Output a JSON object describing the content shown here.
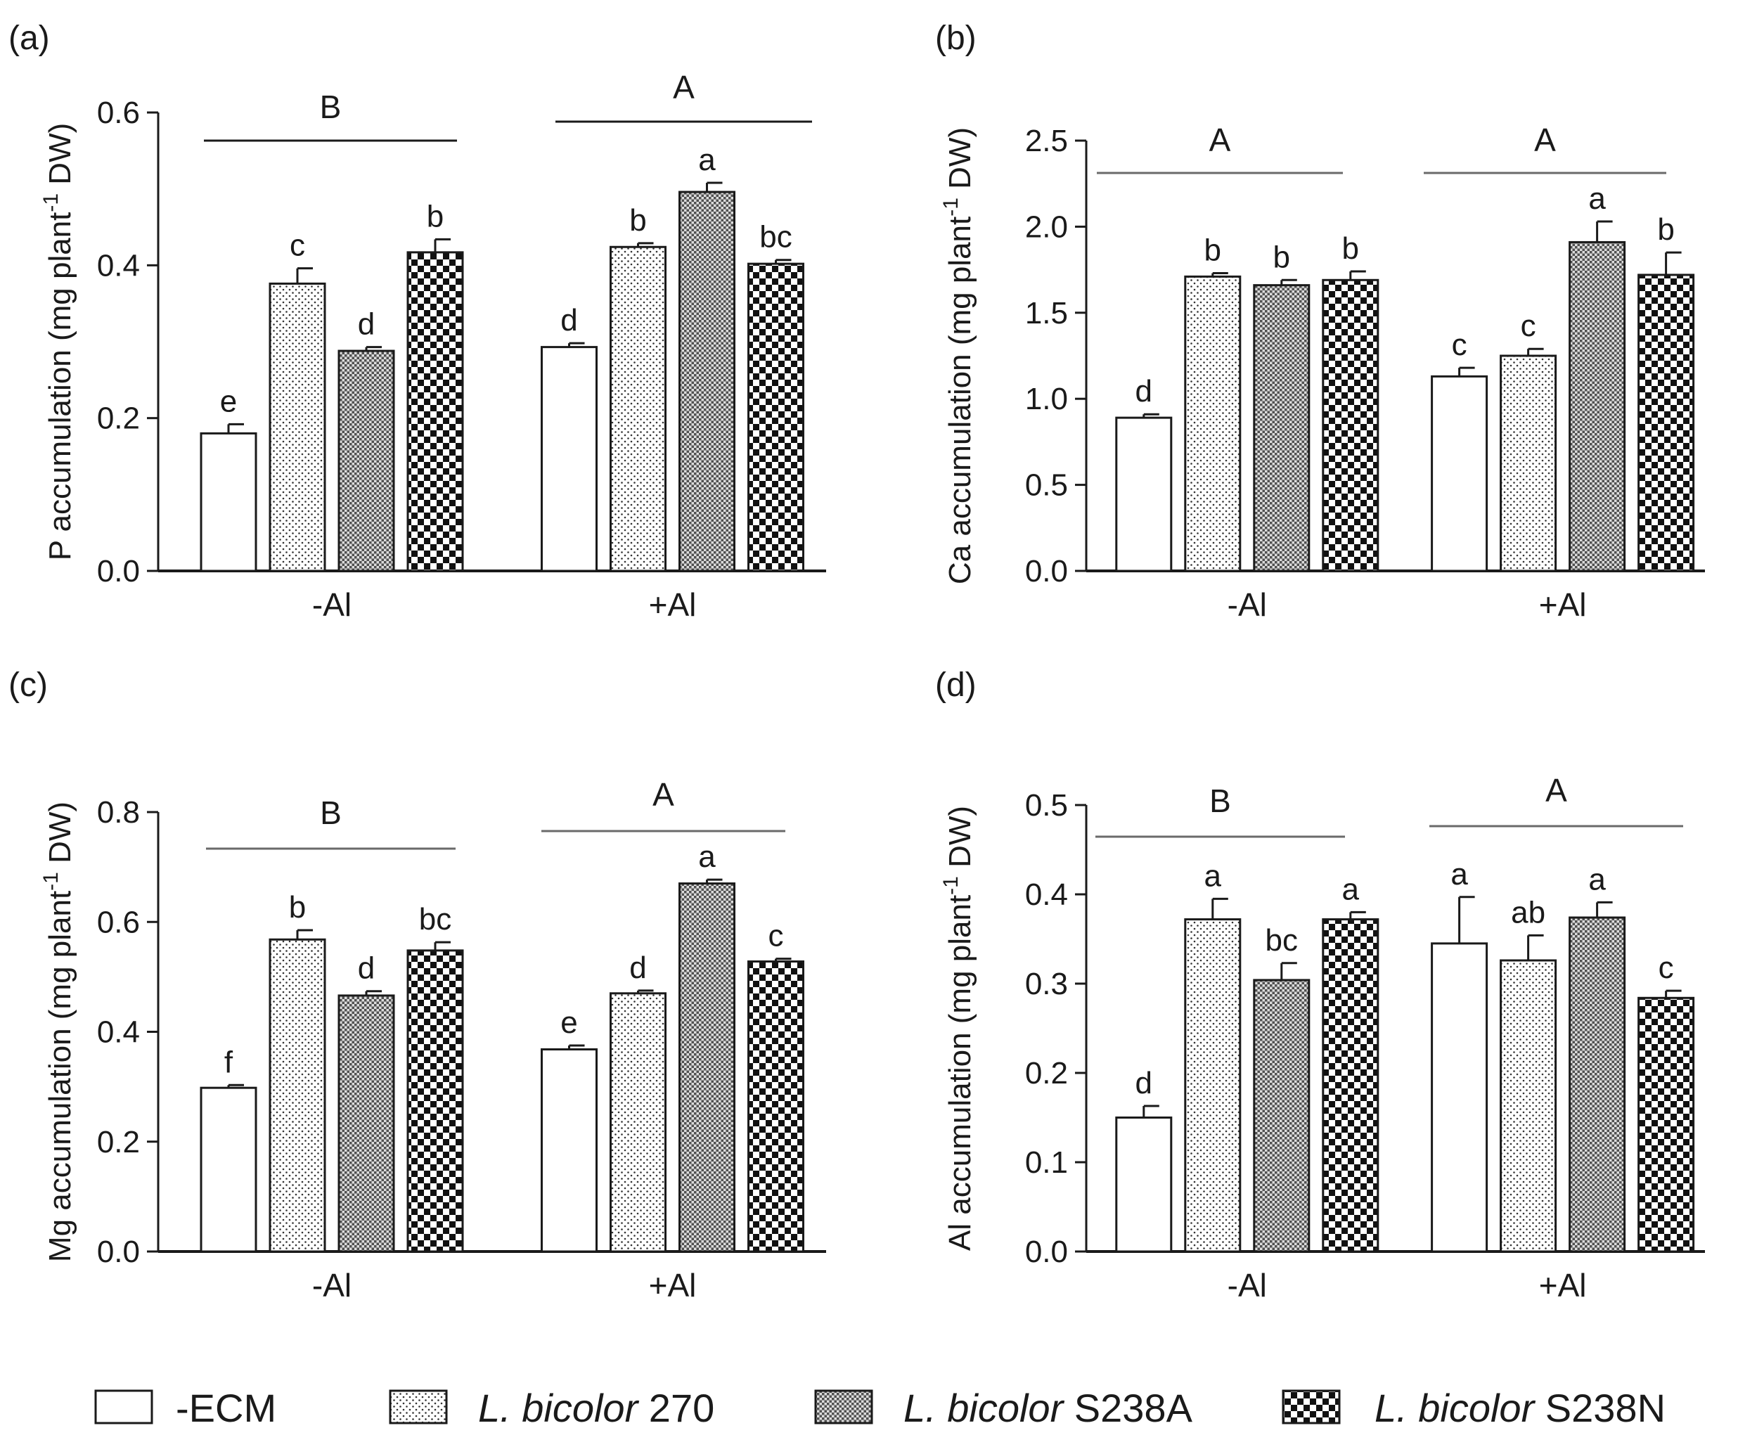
{
  "figure": {
    "legend": [
      {
        "label": "-ECM",
        "italic": "",
        "suffix": "",
        "pattern": "none"
      },
      {
        "label": "",
        "italic": "L. bicolor",
        "suffix": " 270",
        "pattern": "dots"
      },
      {
        "label": "",
        "italic": "L. bicolor",
        "suffix": " S238A",
        "pattern": "grid"
      },
      {
        "label": "",
        "italic": "L. bicolor",
        "suffix": " S238N",
        "pattern": "checker"
      }
    ]
  },
  "chart_data": [
    {
      "type": "bar",
      "panel_label": "(a)",
      "ylabel_main": "P accumulation  (mg  plant",
      "ylabel_sup": "-1",
      "ylabel_tail": " DW)",
      "categories": [
        "-Al",
        "+Al"
      ],
      "series": [
        {
          "name": "-ECM",
          "values": [
            0.18,
            0.293
          ],
          "errors": [
            0.012,
            0.005
          ],
          "letters": [
            "e",
            "d"
          ]
        },
        {
          "name": "L. bicolor 270",
          "values": [
            0.376,
            0.424
          ],
          "errors": [
            0.02,
            0.005
          ],
          "letters": [
            "c",
            "b"
          ]
        },
        {
          "name": "L. bicolor S238A",
          "values": [
            0.288,
            0.496
          ],
          "errors": [
            0.005,
            0.012
          ],
          "letters": [
            "d",
            "a"
          ]
        },
        {
          "name": "L. bicolor S238N",
          "values": [
            0.417,
            0.402
          ],
          "errors": [
            0.017,
            0.005
          ],
          "letters": [
            "b",
            "bc"
          ]
        }
      ],
      "group_letters": [
        "B",
        "A"
      ],
      "ylim": [
        0,
        0.6
      ],
      "yticks": [
        "0.0",
        "0.2",
        "0.4",
        "0.6"
      ]
    },
    {
      "type": "bar",
      "panel_label": "(b)",
      "ylabel_main": "Ca accumulation  (mg  plant",
      "ylabel_sup": "-1",
      "ylabel_tail": " DW)",
      "categories": [
        "-Al",
        "+Al"
      ],
      "series": [
        {
          "name": "-ECM",
          "values": [
            0.89,
            1.13
          ],
          "errors": [
            0.02,
            0.05
          ],
          "letters": [
            "d",
            "c"
          ]
        },
        {
          "name": "L. bicolor 270",
          "values": [
            1.71,
            1.25
          ],
          "errors": [
            0.02,
            0.04
          ],
          "letters": [
            "b",
            "c"
          ]
        },
        {
          "name": "L. bicolor S238A",
          "values": [
            1.66,
            1.91
          ],
          "errors": [
            0.03,
            0.12
          ],
          "letters": [
            "b",
            "a"
          ]
        },
        {
          "name": "L. bicolor S238N",
          "values": [
            1.69,
            1.72
          ],
          "errors": [
            0.05,
            0.13
          ],
          "letters": [
            "b",
            "b"
          ]
        }
      ],
      "group_letters": [
        "A",
        "A"
      ],
      "ylim": [
        0,
        2.5
      ],
      "yticks": [
        "0.0",
        "0.5",
        "1.0",
        "1.5",
        "2.0",
        "2.5"
      ]
    },
    {
      "type": "bar",
      "panel_label": "(c)",
      "ylabel_main": "Mg accumulation  (mg  plant",
      "ylabel_sup": "-1",
      "ylabel_tail": " DW)",
      "categories": [
        "-Al",
        "+Al"
      ],
      "series": [
        {
          "name": "-ECM",
          "values": [
            0.298,
            0.368
          ],
          "errors": [
            0.005,
            0.007
          ],
          "letters": [
            "f",
            "e"
          ]
        },
        {
          "name": "L. bicolor 270",
          "values": [
            0.568,
            0.47
          ],
          "errors": [
            0.017,
            0.005
          ],
          "letters": [
            "b",
            "d"
          ]
        },
        {
          "name": "L. bicolor S238A",
          "values": [
            0.466,
            0.67
          ],
          "errors": [
            0.008,
            0.007
          ],
          "letters": [
            "d",
            "a"
          ]
        },
        {
          "name": "L. bicolor S238N",
          "values": [
            0.548,
            0.528
          ],
          "errors": [
            0.015,
            0.005
          ],
          "letters": [
            "bc",
            "c"
          ]
        }
      ],
      "group_letters": [
        "B",
        "A"
      ],
      "ylim": [
        0,
        0.8
      ],
      "yticks": [
        "0.0",
        "0.2",
        "0.4",
        "0.6",
        "0.8"
      ]
    },
    {
      "type": "bar",
      "panel_label": "(d)",
      "ylabel_main": "Al accumulation  (mg  plant",
      "ylabel_sup": "-1",
      "ylabel_tail": " DW)",
      "categories": [
        "-Al",
        "+Al"
      ],
      "series": [
        {
          "name": "-ECM",
          "values": [
            0.15,
            0.345
          ],
          "errors": [
            0.013,
            0.052
          ],
          "letters": [
            "d",
            "a"
          ]
        },
        {
          "name": "L. bicolor 270",
          "values": [
            0.372,
            0.326
          ],
          "errors": [
            0.023,
            0.028
          ],
          "letters": [
            "a",
            "ab"
          ]
        },
        {
          "name": "L. bicolor S238A",
          "values": [
            0.304,
            0.374
          ],
          "errors": [
            0.019,
            0.017
          ],
          "letters": [
            "bc",
            "a"
          ]
        },
        {
          "name": "L. bicolor S238N",
          "values": [
            0.372,
            0.284
          ],
          "errors": [
            0.008,
            0.008
          ],
          "letters": [
            "a",
            "c"
          ]
        }
      ],
      "group_letters": [
        "B",
        "A"
      ],
      "ylim": [
        0,
        0.5
      ],
      "yticks": [
        "0.0",
        "0.1",
        "0.2",
        "0.3",
        "0.4",
        "0.5"
      ]
    }
  ]
}
